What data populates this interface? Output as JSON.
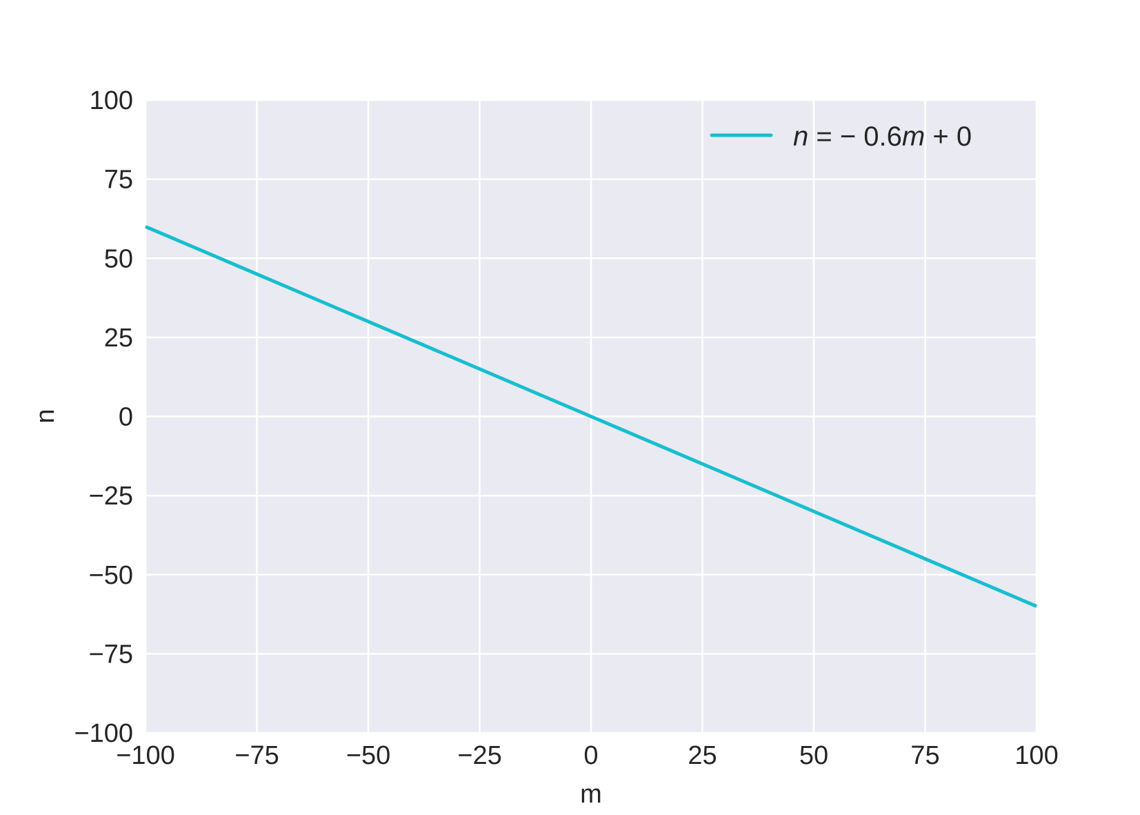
{
  "chart_data": {
    "type": "line",
    "title": "",
    "xlabel": "m",
    "ylabel": "n",
    "xlim": [
      -100,
      100
    ],
    "ylim": [
      -100,
      100
    ],
    "xticks": [
      -100,
      -75,
      -50,
      -25,
      0,
      25,
      50,
      75,
      100
    ],
    "yticks": [
      -100,
      -75,
      -50,
      -25,
      0,
      25,
      50,
      75,
      100
    ],
    "xtick_labels": [
      "−100",
      "−75",
      "−50",
      "−25",
      "0",
      "25",
      "50",
      "75",
      "100"
    ],
    "ytick_labels": [
      "−100",
      "−75",
      "−50",
      "−25",
      "0",
      "25",
      "50",
      "75",
      "100"
    ],
    "grid": true,
    "legend_position": "top-right",
    "colors": {
      "background": "#EAEAF2",
      "grid": "#FFFFFF",
      "line": "#17BECF"
    },
    "series": [
      {
        "name": "n = − 0.6m + 0",
        "x": [
          -100,
          100
        ],
        "y": [
          60,
          -60
        ]
      }
    ]
  }
}
